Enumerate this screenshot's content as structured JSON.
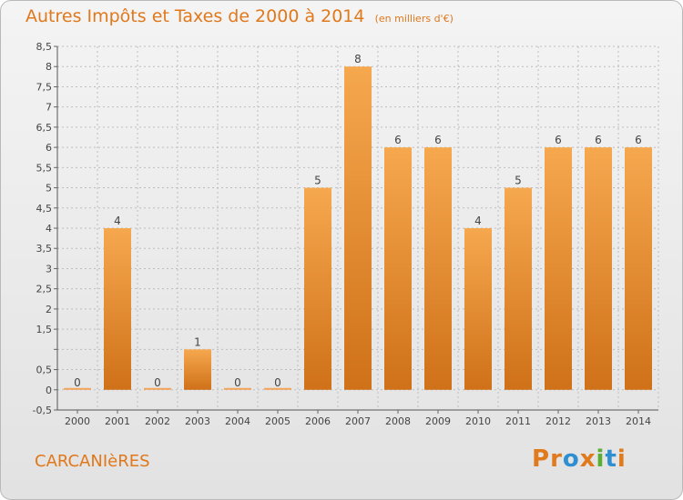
{
  "header": {
    "title": "Autres Impôts et Taxes de 2000 à 2014",
    "subtitle": "(en milliers d'€)"
  },
  "footer": {
    "commune": "CARCANIèRES",
    "logo_text": "Proxiti",
    "logo_letters": [
      "P",
      "r",
      "o",
      "x",
      "i",
      "t",
      "i"
    ],
    "logo_colors": [
      "#e07a1d",
      "#e07a1d",
      "#2f8fd0",
      "#e07a1d",
      "#5aae32",
      "#2f8fd0",
      "#e07a1d"
    ]
  },
  "colors": {
    "accent": "#e0781c",
    "bar_light": "#f6a84f",
    "bar_dark": "#cf7118",
    "grid": "#bdbdbd"
  },
  "chart_data": {
    "type": "bar",
    "title": "Autres Impôts et Taxes de 2000 à 2014",
    "subtitle": "(en milliers d'€)",
    "categories": [
      "2000",
      "2001",
      "2002",
      "2003",
      "2004",
      "2005",
      "2006",
      "2007",
      "2008",
      "2009",
      "2010",
      "2011",
      "2012",
      "2013",
      "2014"
    ],
    "values": [
      0,
      4,
      0,
      1,
      0,
      0,
      5,
      8,
      6,
      6,
      4,
      5,
      6,
      6,
      6
    ],
    "value_labels": [
      "0",
      "4",
      "0",
      "1",
      "0",
      "0",
      "5",
      "8",
      "6",
      "6",
      "4",
      "5",
      "6",
      "6",
      "6"
    ],
    "ylim": [
      -0.5,
      8.5
    ],
    "yticks": [
      -0.5,
      0,
      0.5,
      1,
      1.5,
      2,
      2.5,
      3,
      3.5,
      4,
      4.5,
      5,
      5.5,
      6,
      6.5,
      7,
      7.5,
      8,
      8.5
    ],
    "ytick_labels": [
      "-0,5",
      "0",
      "0,5",
      "",
      "1,5",
      "2",
      "2,5",
      "3",
      "3,5",
      "4",
      "4,5",
      "5",
      "5,5",
      "6",
      "6,5",
      "7",
      "7,5",
      "8",
      "8,5"
    ],
    "grid": true,
    "xlabel": "",
    "ylabel": ""
  }
}
